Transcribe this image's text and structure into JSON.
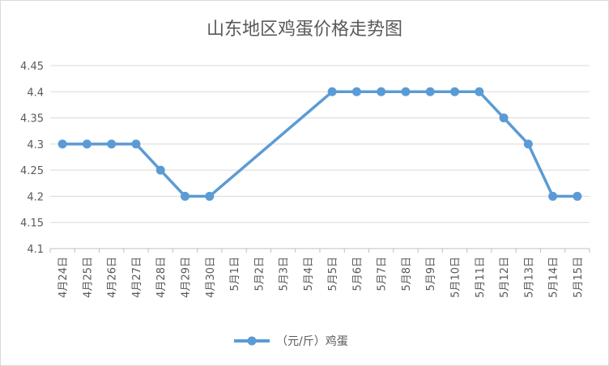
{
  "chart_data": {
    "type": "line",
    "title": "山东地区鸡蛋价格走势图",
    "xlabel": "",
    "ylabel": "",
    "ylim": [
      4.1,
      4.45
    ],
    "yticks": [
      "4.1",
      "4.15",
      "4.2",
      "4.25",
      "4.3",
      "4.35",
      "4.4",
      "4.45"
    ],
    "grid": true,
    "legend_position": "bottom",
    "categories": [
      "4月24日",
      "4月25日",
      "4月26日",
      "4月27日",
      "4月28日",
      "4月29日",
      "4月30日",
      "5月1日",
      "5月2日",
      "5月3日",
      "5月4日",
      "5月5日",
      "5月6日",
      "5月7日",
      "5月8日",
      "5月9日",
      "5月10日",
      "5月11日",
      "5月12日",
      "5月13日",
      "5月14日",
      "5月15日"
    ],
    "series": [
      {
        "name": "（元/斤）鸡蛋",
        "color": "#5b9bd5",
        "values": [
          4.3,
          4.3,
          4.3,
          4.3,
          4.25,
          4.2,
          4.2,
          null,
          null,
          null,
          null,
          4.4,
          4.4,
          4.4,
          4.4,
          4.4,
          4.4,
          4.4,
          4.35,
          4.3,
          4.2,
          4.2
        ]
      }
    ]
  }
}
